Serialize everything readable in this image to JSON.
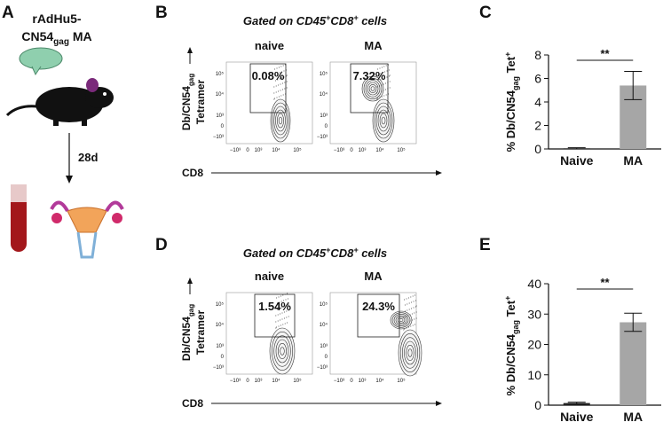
{
  "panel_labels": [
    "A",
    "B",
    "C",
    "D",
    "E"
  ],
  "schematic": {
    "vaccine": [
      "rAdHu5-",
      "CN54",
      "gag",
      " MA"
    ],
    "interval": "28d"
  },
  "flow": [
    {
      "title": [
        "Gated on CD45",
        "+",
        "CD8",
        "+",
        " cells"
      ],
      "plots": [
        {
          "label": "naive",
          "gate": "0.08%"
        },
        {
          "label": "MA",
          "gate": "7.32%"
        }
      ]
    },
    {
      "title": [
        "Gated on CD45",
        "+",
        "CD8",
        "+",
        " cells"
      ],
      "plots": [
        {
          "label": "naive",
          "gate": "1.54%"
        },
        {
          "label": "MA",
          "gate": "24.3%"
        }
      ]
    }
  ],
  "flow_axes": {
    "y_label": [
      "Db/CN54",
      "gag",
      "Tetramer"
    ],
    "x_label": "CD8",
    "y_ticks": [
      "10⁵",
      "10⁴",
      "10³",
      "0",
      "−10³"
    ],
    "x_ticks": [
      "−10³",
      "0",
      "10³",
      "10⁴",
      "10⁵"
    ]
  },
  "chart_data": [
    {
      "type": "bar",
      "y_label": [
        "% Db/CN54",
        "gag",
        " Tet",
        "+"
      ],
      "categories": [
        "Naive",
        "MA"
      ],
      "values": [
        0.05,
        5.4
      ],
      "errors": [
        0.05,
        1.2
      ],
      "colors": [
        "#222222",
        "#a6a6a6"
      ],
      "ylim": [
        0,
        8
      ],
      "yticks": [
        0,
        2,
        4,
        6,
        8
      ],
      "significance": "**"
    },
    {
      "type": "bar",
      "y_label": [
        "% Db/CN54",
        "gag",
        " Tet",
        "+"
      ],
      "categories": [
        "Naive",
        "MA"
      ],
      "values": [
        0.7,
        27.3
      ],
      "errors": [
        0.3,
        3
      ],
      "colors": [
        "#222222",
        "#a6a6a6"
      ],
      "ylim": [
        0,
        40
      ],
      "yticks": [
        0,
        10,
        20,
        30,
        40
      ],
      "significance": "**"
    }
  ]
}
